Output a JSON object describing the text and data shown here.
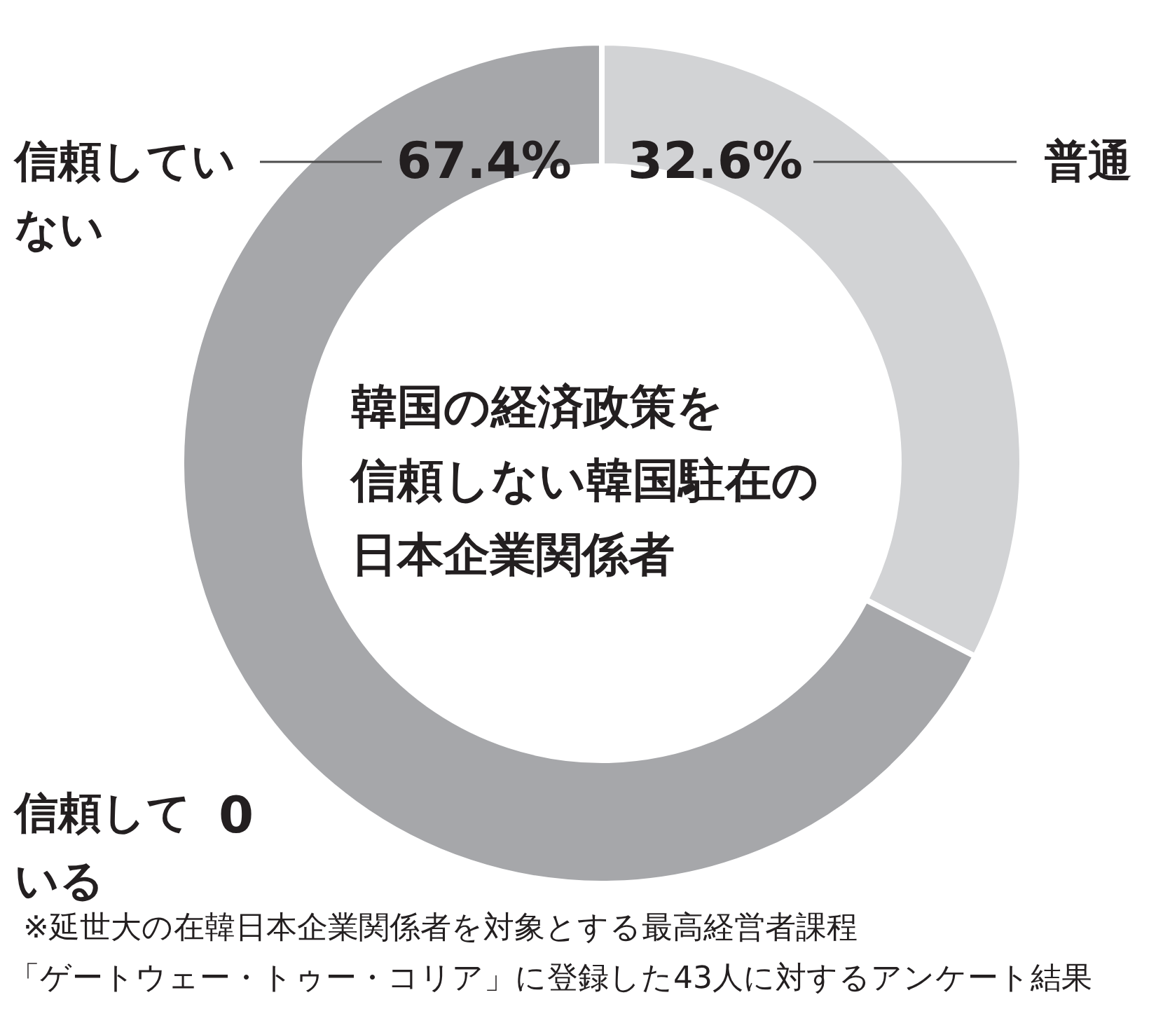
{
  "chart_data": {
    "type": "donut",
    "title": "韓国の経済政策を信頼しない韓国駐在の日本企業関係者",
    "categories": [
      "普通",
      "信頼していない",
      "信頼している"
    ],
    "values": [
      32.6,
      67.4,
      0
    ],
    "colors": [
      "#d2d3d5",
      "#a6a7aa",
      null
    ],
    "value_labels": [
      "32.6%",
      "67.4%",
      "0"
    ],
    "annotations": [
      "※延世大の在韓日本企業関係者を対象とする最高経営者課程",
      "「ゲートウェー・トゥー・コリア」に登録した43人に対するアンケート結果"
    ]
  }
}
